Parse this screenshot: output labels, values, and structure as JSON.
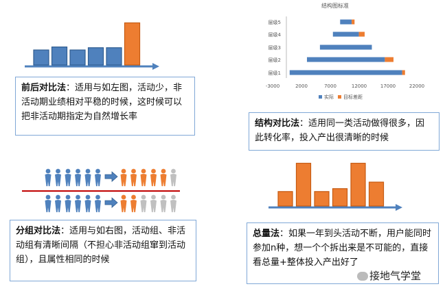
{
  "panels": {
    "before_after": {
      "title": "前后对比法",
      "text": "：适用与如左图，活动少，非活动期业绩相对平稳的时候，这时候可以把非活动期指定为自然增长率"
    },
    "structure": {
      "title": "结构对比法",
      "text": "：适用同一类活动做得很多，因此转化率，投入产出很清晰的时候"
    },
    "group": {
      "title": "分组对比法",
      "text": "：适用与如右图，活动组、非活动组有清晰间隔（不担心非活动组窜到活动组），且属性相同的时候"
    },
    "total": {
      "title": "总量法",
      "text": "：如果一年到头活动不断，用户能同时参加n种，想一个个拆出来是不可能的，直接看总量+整体投入产出好了"
    }
  },
  "watermark": "接地气学堂",
  "colors": {
    "blue": "#4f81bd",
    "orange": "#ed7d31",
    "grey": "#c0c0c0",
    "red": "#c00000",
    "box_border": "#7fa7d6"
  },
  "chart_data": [
    {
      "type": "bar",
      "name": "before_after_sketch",
      "values": [
        1.0,
        1.2,
        1.0,
        1.15,
        1.15,
        2.8
      ],
      "highlight_last": true
    },
    {
      "type": "bar",
      "orientation": "horizontal",
      "title": "结构图标准",
      "categories": [
        "层级1",
        "层级2",
        "层级3",
        "层级4",
        "层级5"
      ],
      "series": [
        {
          "name": "实际",
          "values": [
            19500,
            13500,
            9000,
            4500,
            2000
          ]
        },
        {
          "name": "目标差距",
          "values": [
            500,
            1500,
            0,
            1000,
            500
          ]
        }
      ],
      "x_ticks": [
        "-3000",
        "2000",
        "7000",
        "12000",
        "17000",
        "22000"
      ],
      "xlim": [
        -3000,
        22000
      ]
    },
    {
      "type": "bar",
      "name": "total_sketch",
      "values": [
        1.0,
        2.95,
        1.0,
        1.2,
        2.95,
        1.65
      ]
    }
  ],
  "people_rows": {
    "top": [
      "blue",
      "blue",
      "blue",
      "blue",
      "blue",
      "blue",
      "arrow",
      "orange",
      "orange",
      "orange",
      "orange",
      "orange",
      "grey"
    ],
    "bottom": [
      "blue",
      "blue",
      "blue",
      "blue",
      "blue",
      "blue",
      "arrow",
      "orange",
      "orange",
      "grey",
      "grey",
      "grey",
      "grey"
    ]
  }
}
